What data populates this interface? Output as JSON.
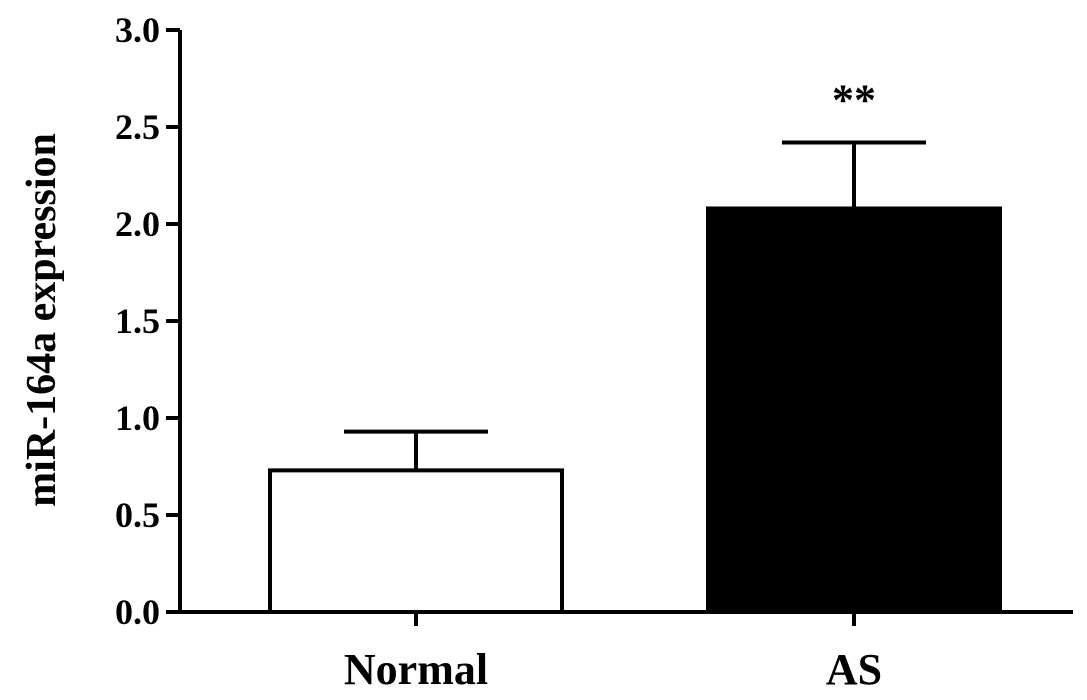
{
  "chart_data": {
    "type": "bar",
    "categories": [
      "Normal",
      "AS"
    ],
    "values": [
      0.73,
      2.08
    ],
    "errors": [
      0.2,
      0.34
    ],
    "bar_fills": [
      "#ffffff",
      "#000000"
    ],
    "annotations": [
      "",
      "**"
    ],
    "title": "",
    "xlabel": "",
    "ylabel": "miR-164a expression",
    "ylim": [
      0.0,
      3.0
    ],
    "yticks": [
      "0.0",
      "0.5",
      "1.0",
      "1.5",
      "2.0",
      "2.5",
      "3.0"
    ],
    "grid": false,
    "legend": "none"
  }
}
